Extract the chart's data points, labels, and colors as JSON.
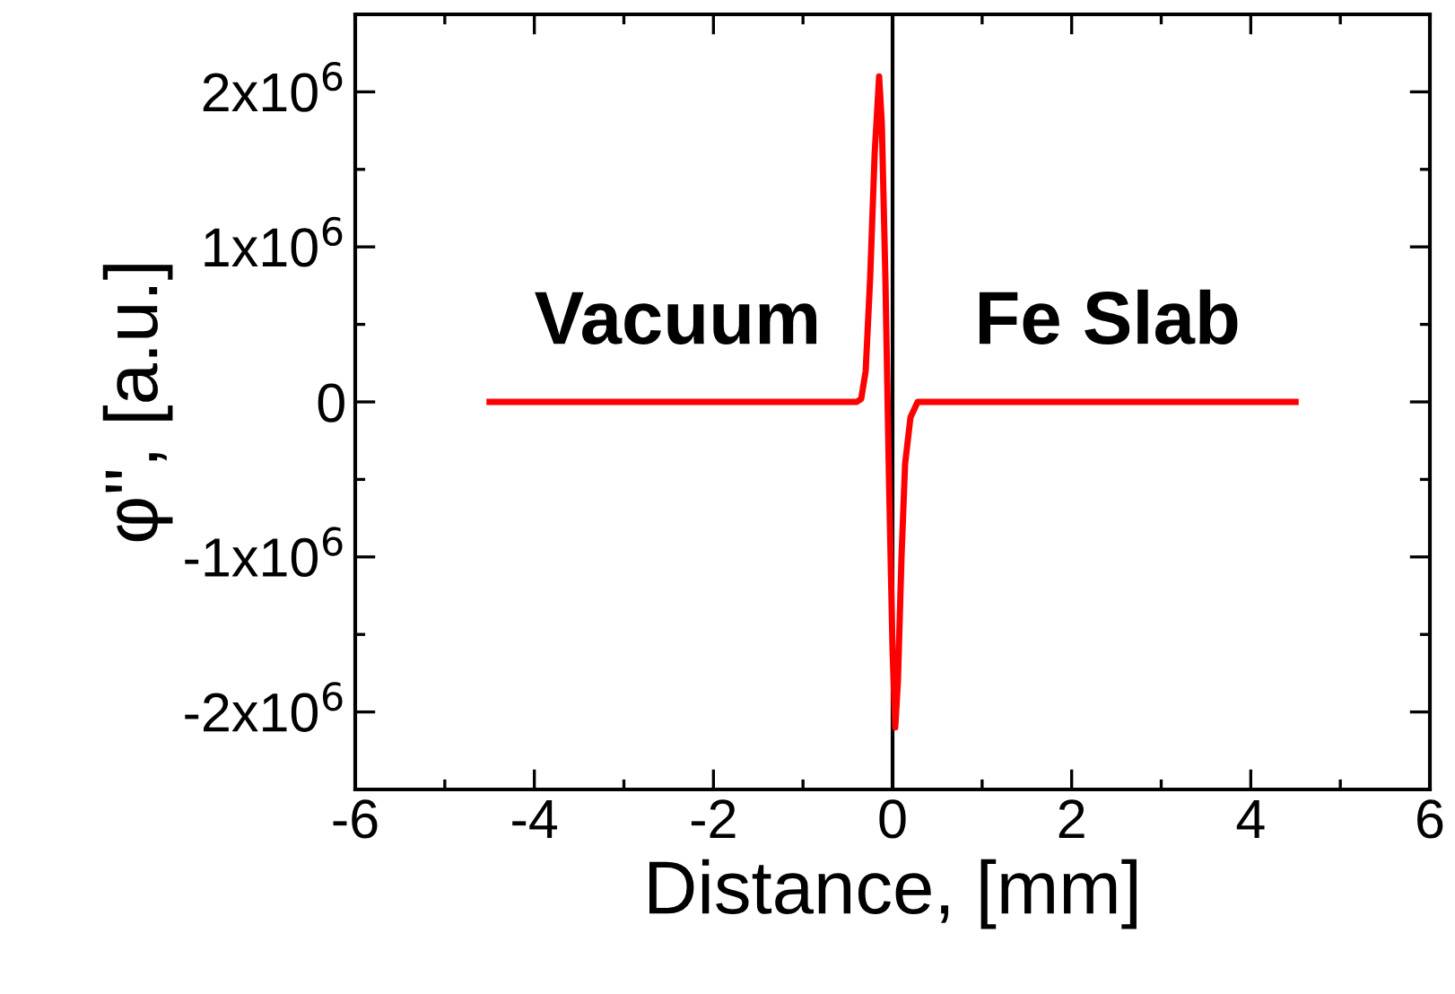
{
  "chart_data": {
    "type": "line",
    "xlabel": "Distance, [mm]",
    "ylabel": "φ'', [a.u.]",
    "x": [
      -4.5,
      -0.4,
      -0.35,
      -0.3,
      -0.25,
      -0.2,
      -0.15,
      -0.12,
      -0.08,
      -0.04,
      0,
      0.03,
      0.06,
      0.1,
      0.14,
      0.2,
      0.28,
      4.5
    ],
    "series": [
      {
        "color": "#ff0000",
        "values": [
          0,
          0,
          20000,
          200000,
          800000,
          1600000,
          2100000,
          1800000,
          800000,
          -500000,
          -1600000,
          -2100000,
          -1800000,
          -1000000,
          -400000,
          -100000,
          0,
          0
        ]
      }
    ],
    "xlim": [
      -6,
      6
    ],
    "xticks": [
      -6,
      -4,
      -2,
      0,
      2,
      4,
      6
    ],
    "ylim": [
      -2500000,
      2500000
    ],
    "yticks": [
      {
        "value": -2000000,
        "label": "-2x10$^{6}$"
      },
      {
        "value": -1000000,
        "label": "-1x10$^{6}$"
      },
      {
        "value": 0,
        "label": "0"
      },
      {
        "value": 1000000,
        "label": "1x10$^{6}$"
      },
      {
        "value": 2000000,
        "label": "2x10$^{6}$"
      }
    ],
    "ref_lines": [
      {
        "axis": "x",
        "value": 0,
        "label": null,
        "color": "#000000"
      }
    ],
    "annotations": [
      "Vacuum",
      "Fe Slab"
    ],
    "grid": false,
    "legend": false,
    "marker": "none",
    "line_style": "solid"
  }
}
